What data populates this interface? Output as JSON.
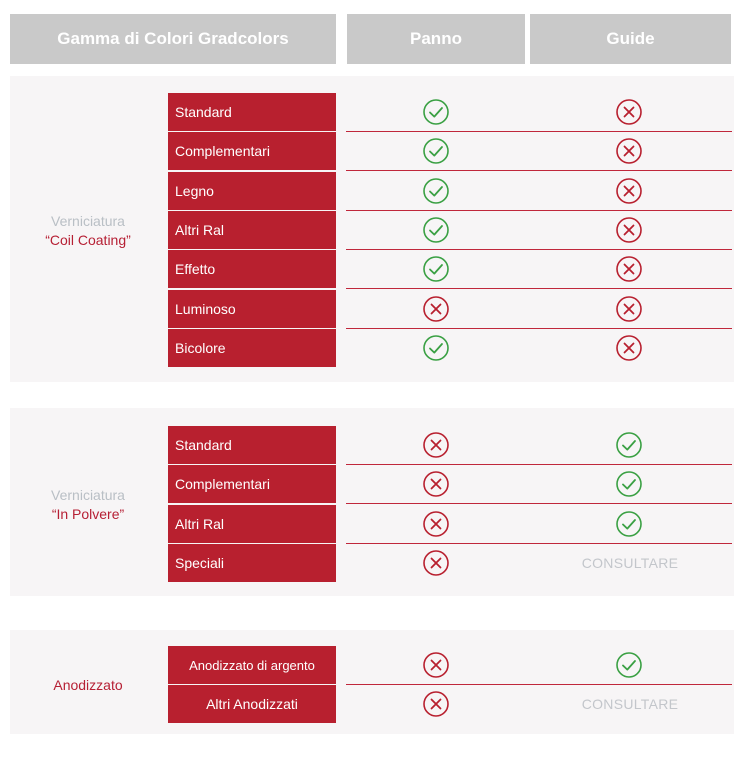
{
  "header": {
    "title": "Gamma di Colori Gradcolors",
    "col_panno": "Panno",
    "col_guide": "Guide"
  },
  "colors": {
    "red": "#b8202f",
    "green": "#3aa043",
    "header_gray": "#c9c9c9",
    "consult_gray": "#c3c6cb"
  },
  "icons": {
    "yes": "check-circle-icon",
    "no": "x-circle-icon"
  },
  "groups": [
    {
      "line1": "Verniciatura",
      "line2": "“Coil Coating”",
      "rows": [
        {
          "label": "Standard",
          "panno": "yes",
          "guide": "no"
        },
        {
          "label": "Complementari",
          "panno": "yes",
          "guide": "no"
        },
        {
          "label": "Legno",
          "panno": "yes",
          "guide": "no"
        },
        {
          "label": "Altri Ral",
          "panno": "yes",
          "guide": "no"
        },
        {
          "label": "Effetto",
          "panno": "yes",
          "guide": "no"
        },
        {
          "label": "Luminoso",
          "panno": "no",
          "guide": "no"
        },
        {
          "label": "Bicolore",
          "panno": "yes",
          "guide": "no"
        }
      ]
    },
    {
      "line1": "Verniciatura",
      "line2": "“In Polvere”",
      "rows": [
        {
          "label": "Standard",
          "panno": "no",
          "guide": "yes"
        },
        {
          "label": "Complementari",
          "panno": "no",
          "guide": "yes"
        },
        {
          "label": "Altri Ral",
          "panno": "no",
          "guide": "yes"
        },
        {
          "label": "Speciali",
          "panno": "no",
          "guide": "CONSULTARE"
        }
      ]
    },
    {
      "line1": "",
      "line2": "Anodizzato",
      "rows": [
        {
          "label": "Anodizzato di argento",
          "panno": "no",
          "guide": "yes"
        },
        {
          "label": "Altri Anodizzati",
          "panno": "no",
          "guide": "CONSULTARE"
        }
      ]
    }
  ]
}
